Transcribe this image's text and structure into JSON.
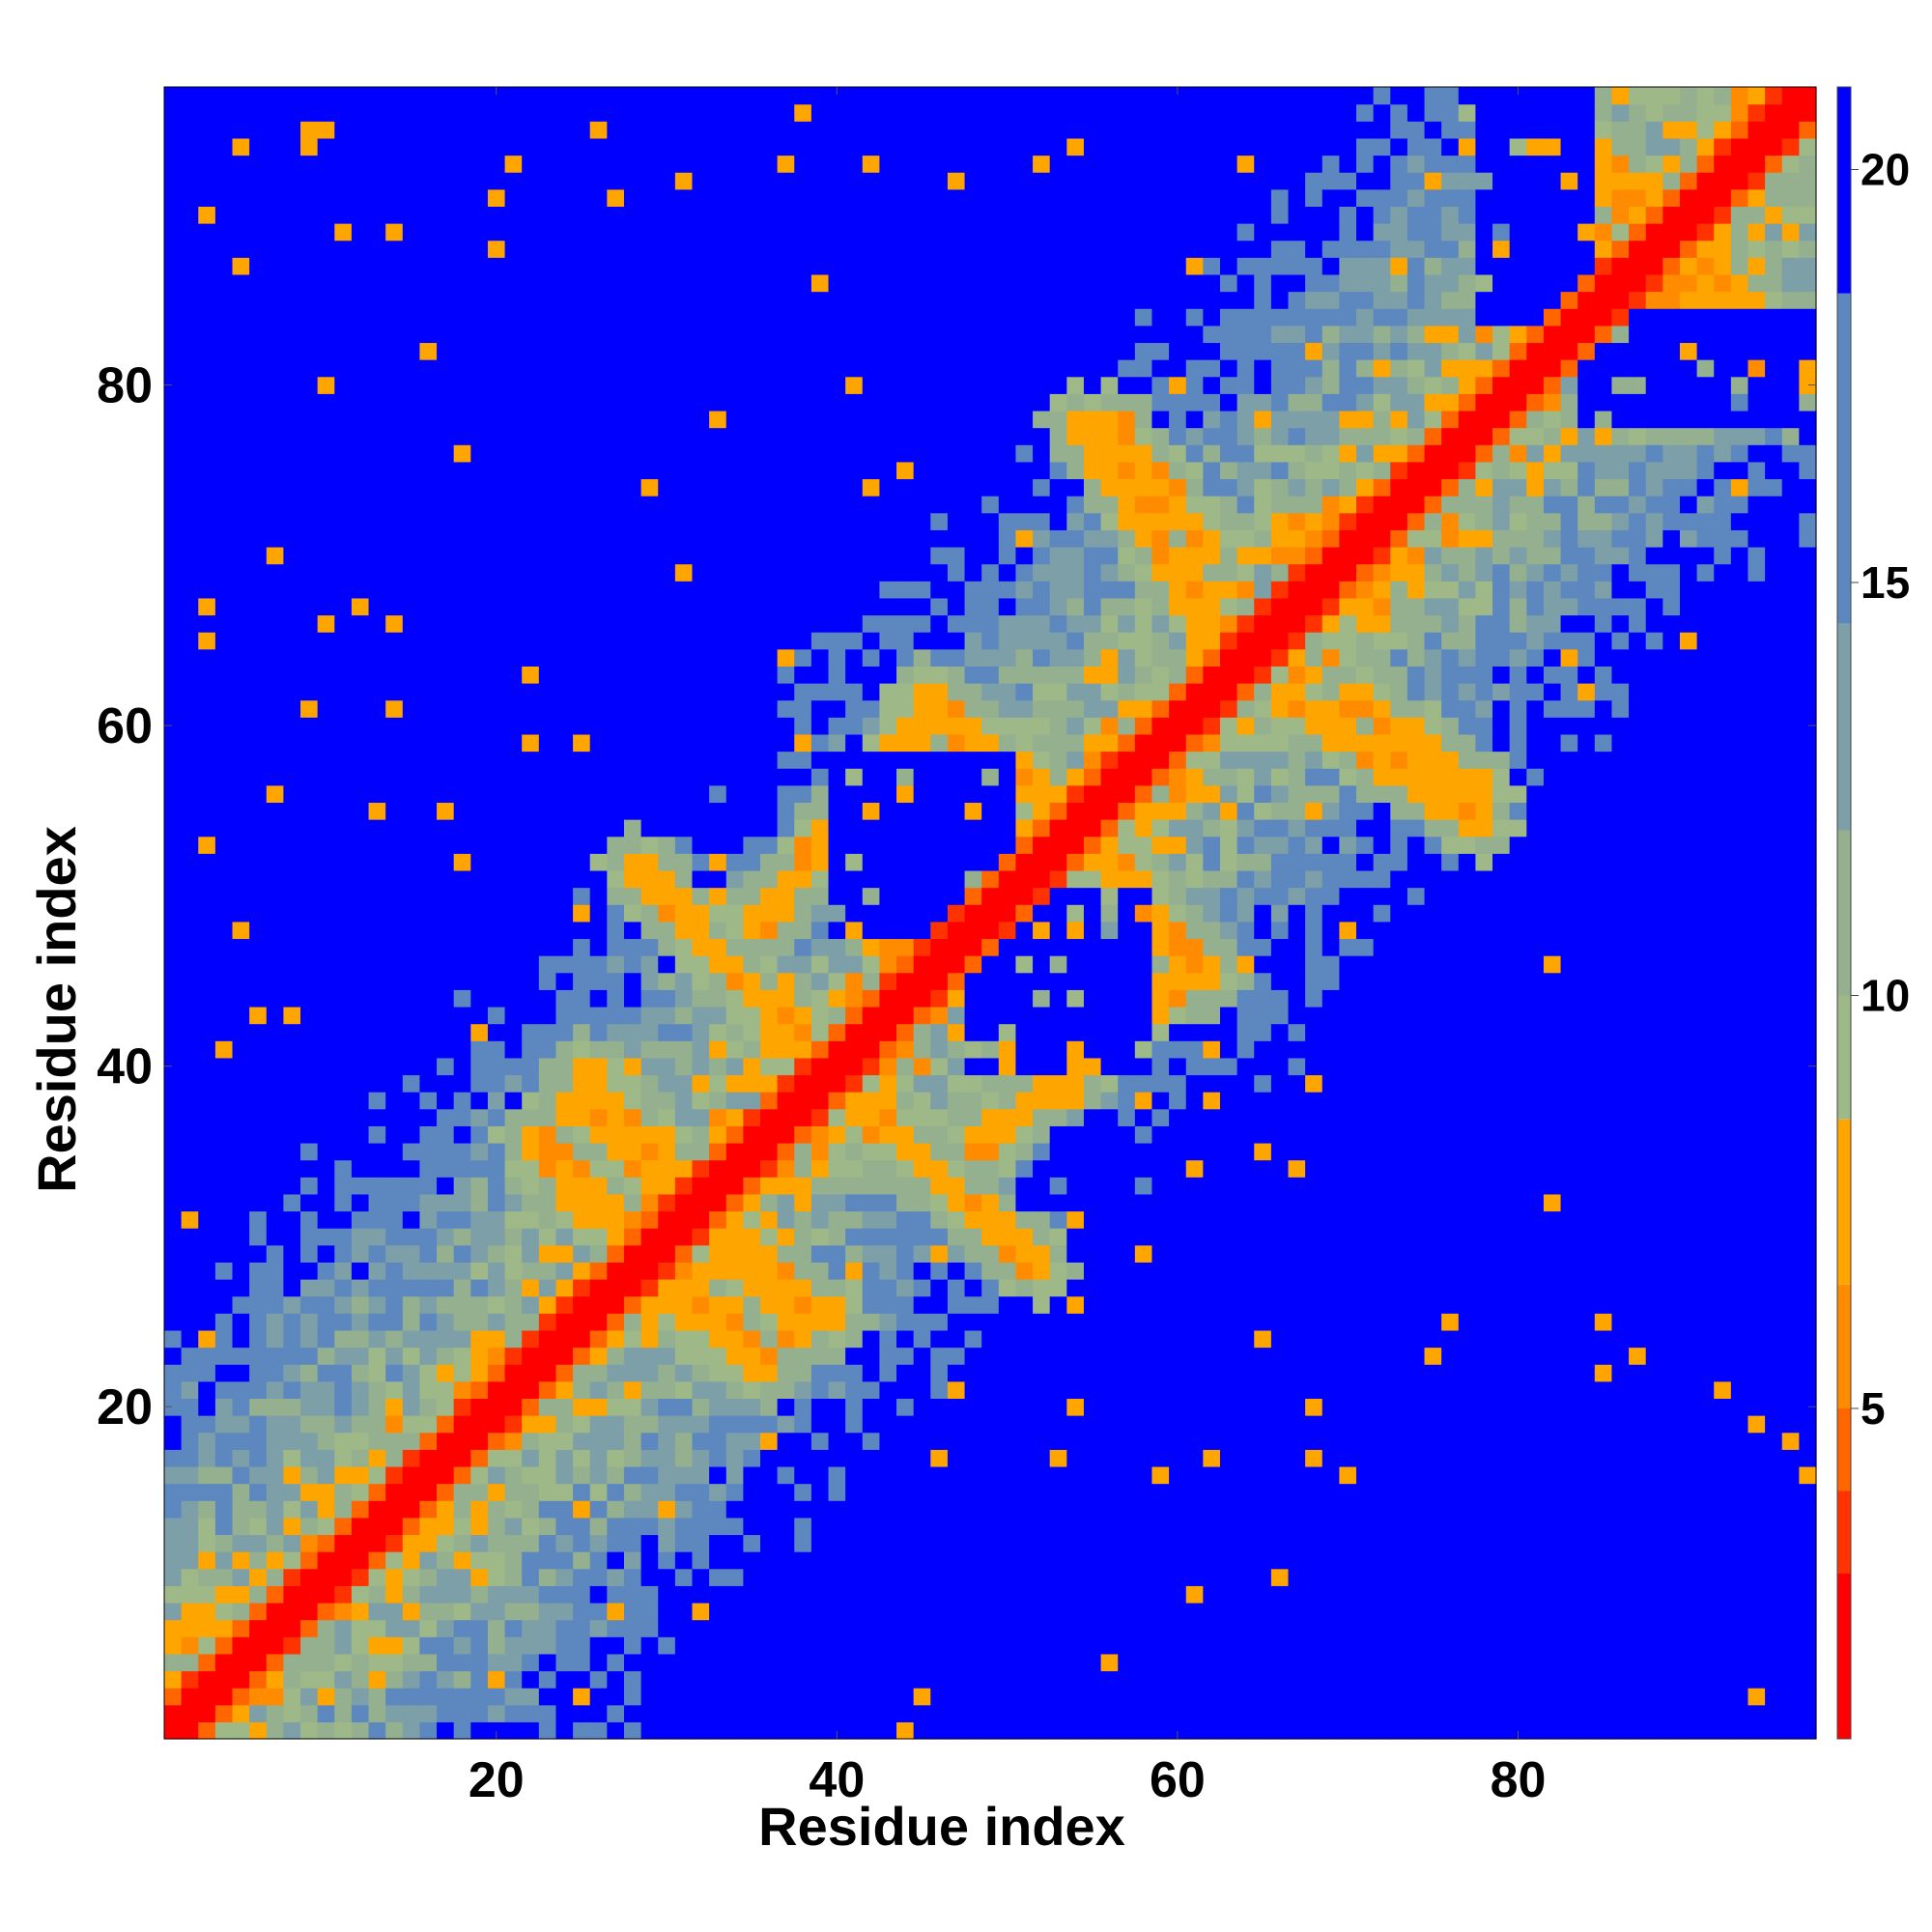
{
  "chart_data": {
    "type": "heatmap",
    "description_of_values": "Residue-residue distance map; diagonal is 0, values increase away from diagonal and saturate in blue regions",
    "n": 97,
    "xlabel": "Residue index",
    "ylabel": "Residue index",
    "xlim": [
      0.5,
      97.5
    ],
    "ylim": [
      0.5,
      97.5
    ],
    "xticks": [
      20,
      40,
      60,
      80
    ],
    "yticks": [
      20,
      40,
      60,
      80
    ],
    "colorbar": {
      "ticks": [
        5,
        10,
        15,
        20
      ],
      "range": [
        1,
        21
      ]
    },
    "color_scale": [
      {
        "max": 3.0,
        "color": "#ff0000"
      },
      {
        "max": 4.0,
        "color": "#ff3300"
      },
      {
        "max": 5.0,
        "color": "#ff6600"
      },
      {
        "max": 6.5,
        "color": "#ff8c00"
      },
      {
        "max": 8.5,
        "color": "#ffa500"
      },
      {
        "max": 10.0,
        "color": "#9fb888"
      },
      {
        "max": 12.0,
        "color": "#94b08f"
      },
      {
        "max": 14.5,
        "color": "#7d9fa8"
      },
      {
        "max": 18.5,
        "color": "#5c88bf"
      },
      {
        "max": 99,
        "color": "#0000ff"
      }
    ],
    "blue_blocks": [
      {
        "i": [
          1,
          8
        ],
        "j": [
          40,
          95
        ]
      },
      {
        "i": [
          40,
          95
        ],
        "j": [
          1,
          8
        ]
      },
      {
        "i": [
          18,
          30
        ],
        "j": [
          75,
          87
        ]
      },
      {
        "i": [
          75,
          87
        ],
        "j": [
          18,
          30
        ]
      },
      {
        "i": [
          38,
          44
        ],
        "j": [
          70,
          95
        ]
      },
      {
        "i": [
          70,
          95
        ],
        "j": [
          38,
          44
        ]
      },
      {
        "i": [
          48,
          58
        ],
        "j": [
          40,
          50
        ]
      },
      {
        "i": [
          40,
          50
        ],
        "j": [
          48,
          58
        ]
      },
      {
        "i": [
          14,
          24
        ],
        "j": [
          60,
          80
        ]
      },
      {
        "i": [
          60,
          80
        ],
        "j": [
          14,
          24
        ]
      },
      {
        "i": [
          1,
          4
        ],
        "j": [
          58,
          72
        ]
      },
      {
        "i": [
          58,
          72
        ],
        "j": [
          1,
          4
        ]
      },
      {
        "i": [
          1,
          5
        ],
        "j": [
          40,
          46
        ]
      },
      {
        "i": [
          30,
          36
        ],
        "j": [
          54,
          62
        ]
      },
      {
        "i": [
          54,
          62
        ],
        "j": [
          30,
          36
        ]
      },
      {
        "i": [
          78,
          84
        ],
        "j": [
          84,
          97
        ]
      },
      {
        "i": [
          84,
          97
        ],
        "j": [
          78,
          84
        ]
      }
    ],
    "contact_bands": [
      {
        "from": [
          24,
          38
        ],
        "to": [
          40,
          25
        ]
      },
      {
        "from": [
          43,
          36
        ],
        "to": [
          28,
          52
        ]
      },
      {
        "from": [
          48,
          35
        ],
        "to": [
          60,
          45
        ]
      },
      {
        "from": [
          45,
          62
        ],
        "to": [
          58,
          50
        ]
      },
      {
        "from": [
          56,
          78
        ],
        "to": [
          62,
          70
        ]
      },
      {
        "from": [
          66,
          62
        ],
        "to": [
          78,
          54
        ]
      },
      {
        "from": [
          79,
          96
        ],
        "to": [
          90,
          88
        ]
      },
      {
        "from": [
          90,
          88
        ],
        "to": [
          97,
          82
        ]
      },
      {
        "from": [
          28,
          30
        ],
        "to": [
          36,
          22
        ]
      },
      {
        "from": [
          68,
          72
        ],
        "to": [
          72,
          66
        ]
      }
    ]
  }
}
